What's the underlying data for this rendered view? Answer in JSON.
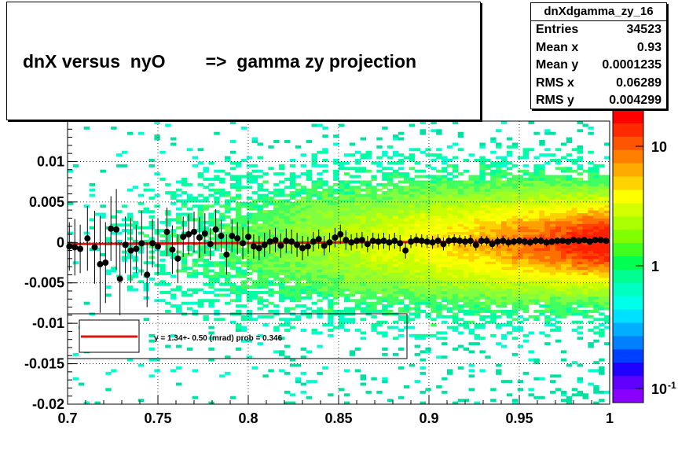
{
  "chart_data": {
    "type": "heatmap",
    "title": "dnX versus  nyO        =>  gamma zy projection",
    "xlim": [
      0.7,
      1.0
    ],
    "ylim": [
      -0.02,
      0.015
    ],
    "x_ticks": [
      "0.7",
      "0.75",
      "0.8",
      "0.85",
      "0.9",
      "0.95",
      "1"
    ],
    "y_ticks": [
      "-0.02",
      "-0.015",
      "-0.01",
      "-0.005",
      "0",
      "0.005",
      "0.01"
    ],
    "colorbar_ticks": [
      "10",
      "1",
      "10"
    ],
    "colorbar_exponent": "-1",
    "stats": {
      "name": "dnXdgamma_zy_16",
      "rows": [
        {
          "label": "Entries",
          "value": "34523"
        },
        {
          "label": "Mean x",
          "value": "0.93"
        },
        {
          "label": "Mean y",
          "value": "0.0001235"
        },
        {
          "label": "RMS x",
          "value": "0.06289"
        },
        {
          "label": "RMS y",
          "value": "0.004299"
        }
      ]
    },
    "fit": {
      "line_color": "#e0140f",
      "label": "γ =    1.34+- 0.50 (mrad) prob = 0.346",
      "slope": 0.00134,
      "ref_x": 1.0,
      "intercept_at_ref": 0.0002
    },
    "profile_points": [
      {
        "x": 0.701,
        "y": -0.0005,
        "err": 0.003
      },
      {
        "x": 0.704,
        "y": -0.0006,
        "err": 0.0035
      },
      {
        "x": 0.707,
        "y": -0.0008,
        "err": 0.003
      },
      {
        "x": 0.711,
        "y": 0.0005,
        "err": 0.004
      },
      {
        "x": 0.715,
        "y": -0.0006,
        "err": 0.0045
      },
      {
        "x": 0.718,
        "y": -0.0027,
        "err": 0.006
      },
      {
        "x": 0.721,
        "y": -0.0025,
        "err": 0.005
      },
      {
        "x": 0.724,
        "y": 0.0017,
        "err": 0.004
      },
      {
        "x": 0.727,
        "y": 0.0016,
        "err": 0.005
      },
      {
        "x": 0.729,
        "y": -0.0045,
        "err": 0.0045
      },
      {
        "x": 0.732,
        "y": -0.0003,
        "err": 0.0035
      },
      {
        "x": 0.735,
        "y": -0.001,
        "err": 0.004
      },
      {
        "x": 0.738,
        "y": -0.0008,
        "err": 0.003
      },
      {
        "x": 0.741,
        "y": -0.0001,
        "err": 0.004
      },
      {
        "x": 0.744,
        "y": -0.004,
        "err": 0.004
      },
      {
        "x": 0.747,
        "y": -0.0001,
        "err": 0.003
      },
      {
        "x": 0.75,
        "y": -0.0005,
        "err": 0.0035
      },
      {
        "x": 0.755,
        "y": 0.0013,
        "err": 0.003
      },
      {
        "x": 0.758,
        "y": -0.0009,
        "err": 0.003
      },
      {
        "x": 0.761,
        "y": -0.002,
        "err": 0.003
      },
      {
        "x": 0.764,
        "y": 0.0007,
        "err": 0.0025
      },
      {
        "x": 0.767,
        "y": 0.001,
        "err": 0.0025
      },
      {
        "x": 0.77,
        "y": 0.0013,
        "err": 0.0025
      },
      {
        "x": 0.773,
        "y": 0.0006,
        "err": 0.0025
      },
      {
        "x": 0.776,
        "y": 0.0011,
        "err": 0.0025
      },
      {
        "x": 0.779,
        "y": -0.0002,
        "err": 0.002
      },
      {
        "x": 0.782,
        "y": 0.0016,
        "err": 0.0025
      },
      {
        "x": 0.785,
        "y": 0.0008,
        "err": 0.002
      },
      {
        "x": 0.788,
        "y": -0.0015,
        "err": 0.0025
      },
      {
        "x": 0.791,
        "y": 0.0008,
        "err": 0.002
      },
      {
        "x": 0.794,
        "y": 0.0005,
        "err": 0.002
      },
      {
        "x": 0.797,
        "y": -0.0001,
        "err": 0.002
      },
      {
        "x": 0.8,
        "y": 0.0007,
        "err": 0.002
      },
      {
        "x": 0.803,
        "y": -0.0005,
        "err": 0.0015
      },
      {
        "x": 0.806,
        "y": -0.0007,
        "err": 0.0015
      },
      {
        "x": 0.809,
        "y": -0.0003,
        "err": 0.0015
      },
      {
        "x": 0.812,
        "y": 0.0001,
        "err": 0.0015
      },
      {
        "x": 0.815,
        "y": 0.0003,
        "err": 0.0015
      },
      {
        "x": 0.818,
        "y": -0.0004,
        "err": 0.0015
      },
      {
        "x": 0.821,
        "y": 0.0002,
        "err": 0.0015
      },
      {
        "x": 0.824,
        "y": 0.0001,
        "err": 0.0015
      },
      {
        "x": 0.827,
        "y": -0.0003,
        "err": 0.0015
      },
      {
        "x": 0.83,
        "y": -0.0007,
        "err": 0.0015
      },
      {
        "x": 0.833,
        "y": -0.0005,
        "err": 0.0012
      },
      {
        "x": 0.836,
        "y": 0.0001,
        "err": 0.0012
      },
      {
        "x": 0.839,
        "y": 0.0004,
        "err": 0.0012
      },
      {
        "x": 0.842,
        "y": -0.0004,
        "err": 0.0012
      },
      {
        "x": 0.845,
        "y": 0.0,
        "err": 0.0012
      },
      {
        "x": 0.848,
        "y": 0.0006,
        "err": 0.0012
      },
      {
        "x": 0.851,
        "y": 0.001,
        "err": 0.0012
      },
      {
        "x": 0.854,
        "y": 0.0003,
        "err": 0.0012
      },
      {
        "x": 0.857,
        "y": 0.0,
        "err": 0.001
      },
      {
        "x": 0.86,
        "y": 0.0002,
        "err": 0.001
      },
      {
        "x": 0.863,
        "y": 0.0003,
        "err": 0.001
      },
      {
        "x": 0.866,
        "y": -0.0002,
        "err": 0.001
      },
      {
        "x": 0.869,
        "y": 0.0002,
        "err": 0.001
      },
      {
        "x": 0.872,
        "y": 0.0001,
        "err": 0.001
      },
      {
        "x": 0.875,
        "y": 0.0002,
        "err": 0.001
      },
      {
        "x": 0.878,
        "y": 0.0,
        "err": 0.001
      },
      {
        "x": 0.881,
        "y": 0.0002,
        "err": 0.001
      },
      {
        "x": 0.884,
        "y": -0.0001,
        "err": 0.001
      },
      {
        "x": 0.887,
        "y": -0.001,
        "err": 0.001
      },
      {
        "x": 0.89,
        "y": 0.0001,
        "err": 0.0008
      },
      {
        "x": 0.893,
        "y": 0.0003,
        "err": 0.0008
      },
      {
        "x": 0.896,
        "y": 0.0002,
        "err": 0.0008
      },
      {
        "x": 0.899,
        "y": 0.0001,
        "err": 0.0008
      },
      {
        "x": 0.902,
        "y": 0.0,
        "err": 0.0008
      },
      {
        "x": 0.905,
        "y": 0.0002,
        "err": 0.0008
      },
      {
        "x": 0.908,
        "y": -0.0002,
        "err": 0.0008
      },
      {
        "x": 0.911,
        "y": 0.0002,
        "err": 0.0007
      },
      {
        "x": 0.914,
        "y": 0.0003,
        "err": 0.0007
      },
      {
        "x": 0.917,
        "y": 0.0002,
        "err": 0.0007
      },
      {
        "x": 0.92,
        "y": 0.0001,
        "err": 0.0007
      },
      {
        "x": 0.923,
        "y": 0.0002,
        "err": 0.0007
      },
      {
        "x": 0.926,
        "y": -0.0003,
        "err": 0.0007
      },
      {
        "x": 0.929,
        "y": 0.0002,
        "err": 0.0006
      },
      {
        "x": 0.932,
        "y": 0.0002,
        "err": 0.0006
      },
      {
        "x": 0.935,
        "y": -0.0002,
        "err": 0.0006
      },
      {
        "x": 0.938,
        "y": 0.0001,
        "err": 0.0006
      },
      {
        "x": 0.941,
        "y": 0.0002,
        "err": 0.0006
      },
      {
        "x": 0.944,
        "y": 0.0,
        "err": 0.0006
      },
      {
        "x": 0.947,
        "y": 0.0001,
        "err": 0.0005
      },
      {
        "x": 0.95,
        "y": 0.0002,
        "err": 0.0005
      },
      {
        "x": 0.953,
        "y": 0.0001,
        "err": 0.0005
      },
      {
        "x": 0.956,
        "y": 0.0,
        "err": 0.0005
      },
      {
        "x": 0.959,
        "y": 0.0002,
        "err": 0.0005
      },
      {
        "x": 0.962,
        "y": 0.0002,
        "err": 0.0005
      },
      {
        "x": 0.965,
        "y": 0.0,
        "err": 0.0005
      },
      {
        "x": 0.968,
        "y": 0.0001,
        "err": 0.0004
      },
      {
        "x": 0.971,
        "y": 0.0002,
        "err": 0.0004
      },
      {
        "x": 0.974,
        "y": 0.0002,
        "err": 0.0004
      },
      {
        "x": 0.977,
        "y": 0.0001,
        "err": 0.0004
      },
      {
        "x": 0.98,
        "y": 0.0003,
        "err": 0.0004
      },
      {
        "x": 0.983,
        "y": 0.0002,
        "err": 0.0004
      },
      {
        "x": 0.986,
        "y": 0.0003,
        "err": 0.0004
      },
      {
        "x": 0.989,
        "y": 0.0001,
        "err": 0.0004
      },
      {
        "x": 0.992,
        "y": 0.0003,
        "err": 0.0004
      },
      {
        "x": 0.995,
        "y": 0.0003,
        "err": 0.0004
      },
      {
        "x": 0.998,
        "y": 0.0002,
        "err": 0.0004
      }
    ]
  }
}
